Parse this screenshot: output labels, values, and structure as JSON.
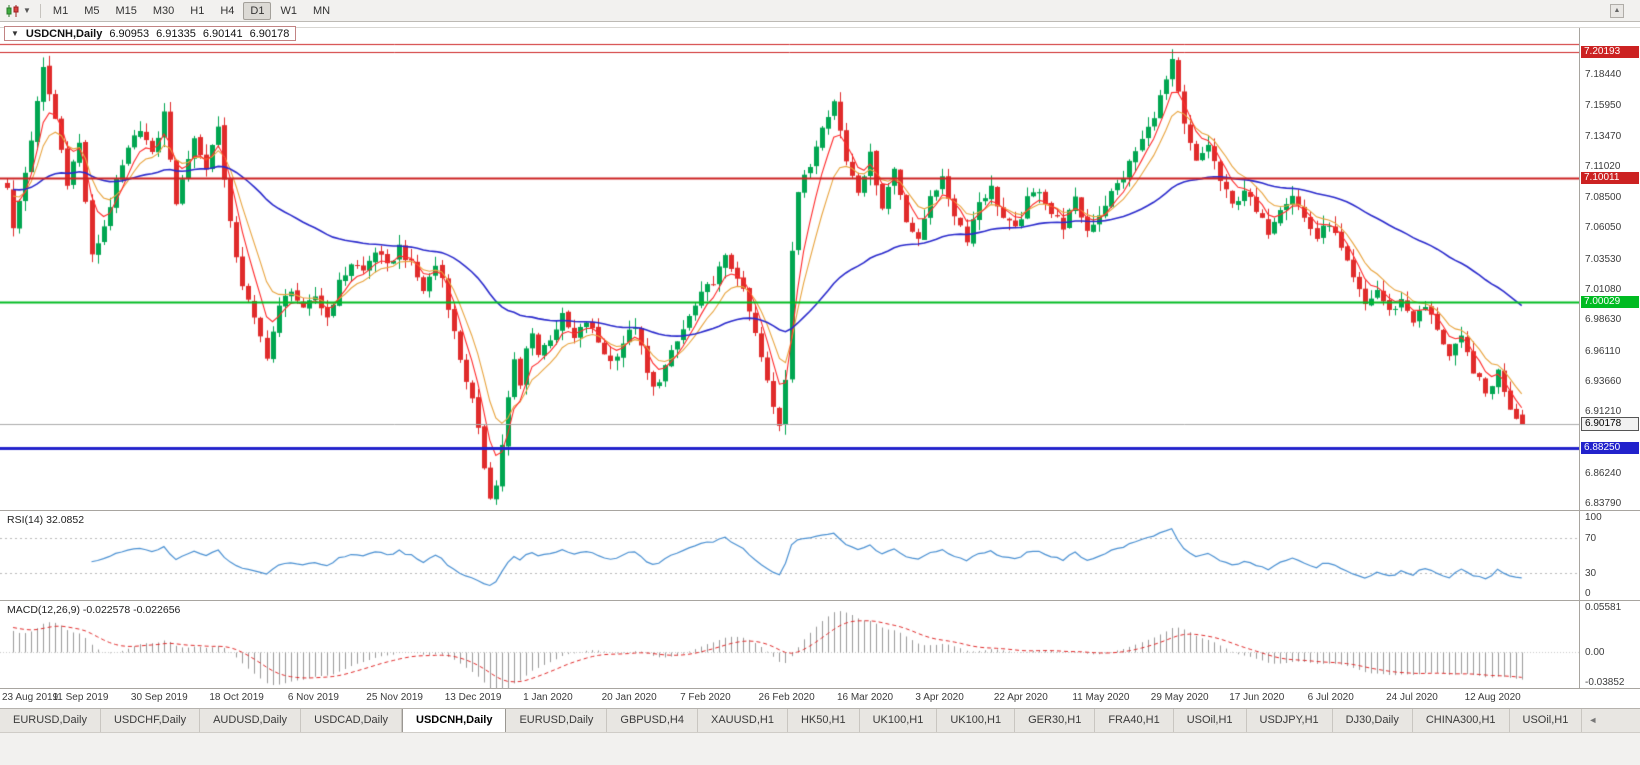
{
  "toolbar": {
    "timeframes": [
      "M1",
      "M5",
      "M15",
      "M30",
      "H1",
      "H4",
      "D1",
      "W1",
      "MN"
    ],
    "active_timeframe": "D1"
  },
  "title_overlay": {
    "collapse_icon": "▼",
    "symbol_period": "USDCNH,Daily",
    "open": "6.90953",
    "high": "6.91335",
    "low": "6.90141",
    "close": "6.90178"
  },
  "chart_data": {
    "type": "candlestick",
    "title": "USDCNH,Daily",
    "symbol": "USDCNH",
    "period": "Daily",
    "ohlc_display": {
      "open": 6.90953,
      "high": 6.91335,
      "low": 6.90141,
      "close": 6.90178
    },
    "price_axis": {
      "min": 6.8325,
      "max": 7.2215,
      "ticks": [
        "7.18440",
        "7.15950",
        "7.13470",
        "7.11020",
        "7.08500",
        "7.06050",
        "7.03530",
        "7.01080",
        "6.98630",
        "6.96110",
        "6.93660",
        "6.91210",
        "6.86240",
        "6.83790"
      ]
    },
    "time_axis": {
      "labels": [
        "23 Aug 2019",
        "11 Sep 2019",
        "30 Sep 2019",
        "18 Oct 2019",
        "6 Nov 2019",
        "25 Nov 2019",
        "13 Dec 2019",
        "1 Jan 2020",
        "20 Jan 2020",
        "7 Feb 2020",
        "26 Feb 2020",
        "16 Mar 2020",
        "3 Apr 2020",
        "22 Apr 2020",
        "11 May 2020",
        "29 May 2020",
        "17 Jun 2020",
        "6 Jul 2020",
        "24 Jul 2020",
        "12 Aug 2020"
      ],
      "bars_per_label": 13
    },
    "horizontal_lines": [
      {
        "value": 7.2089,
        "label": "",
        "color": "#cc2222",
        "width": 1,
        "show_label": false
      },
      {
        "value": 7.20193,
        "label": "7.20193",
        "color": "#cc2222",
        "width": 1,
        "show_label": true
      },
      {
        "value": 7.10011,
        "label": "7.10011",
        "color": "#cc2222",
        "width": 2,
        "show_label": true
      },
      {
        "value": 7.00029,
        "label": "7.00029",
        "color": "#00bb22",
        "width": 2,
        "show_label": true
      },
      {
        "value": 6.8825,
        "label": "6.88250",
        "color": "#2222cc",
        "width": 3,
        "show_label": true
      }
    ],
    "current_price": {
      "value": 6.90178,
      "label": "6.90178",
      "line_color": "#aaaaaa"
    },
    "candles": {
      "count": 252,
      "slots": 260,
      "up_color": "#00a651",
      "down_color": "#e02b2b",
      "close_anchors": [
        [
          0,
          7.095
        ],
        [
          1,
          7.058
        ],
        [
          3,
          7.105
        ],
        [
          5,
          7.16
        ],
        [
          6,
          7.188
        ],
        [
          8,
          7.148
        ],
        [
          10,
          7.098
        ],
        [
          12,
          7.128
        ],
        [
          14,
          7.036
        ],
        [
          16,
          7.062
        ],
        [
          18,
          7.096
        ],
        [
          20,
          7.122
        ],
        [
          22,
          7.142
        ],
        [
          24,
          7.118
        ],
        [
          26,
          7.152
        ],
        [
          27,
          7.118
        ],
        [
          28,
          7.076
        ],
        [
          29,
          7.102
        ],
        [
          31,
          7.132
        ],
        [
          33,
          7.108
        ],
        [
          35,
          7.145
        ],
        [
          36,
          7.098
        ],
        [
          37,
          7.062
        ],
        [
          39,
          7.015
        ],
        [
          41,
          6.985
        ],
        [
          43,
          6.958
        ],
        [
          45,
          6.995
        ],
        [
          47,
          7.012
        ],
        [
          49,
          6.992
        ],
        [
          51,
          7.005
        ],
        [
          53,
          6.988
        ],
        [
          55,
          7.015
        ],
        [
          57,
          7.032
        ],
        [
          59,
          7.025
        ],
        [
          61,
          7.042
        ],
        [
          63,
          7.028
        ],
        [
          65,
          7.045
        ],
        [
          67,
          7.03
        ],
        [
          69,
          7.01
        ],
        [
          71,
          7.03
        ],
        [
          72,
          7.02
        ],
        [
          73,
          6.998
        ],
        [
          74,
          6.975
        ],
        [
          75,
          6.955
        ],
        [
          76,
          6.938
        ],
        [
          77,
          6.92
        ],
        [
          78,
          6.895
        ],
        [
          79,
          6.868
        ],
        [
          80,
          6.845
        ],
        [
          81,
          6.852
        ],
        [
          82,
          6.886
        ],
        [
          83,
          6.922
        ],
        [
          84,
          6.952
        ],
        [
          85,
          6.932
        ],
        [
          86,
          6.962
        ],
        [
          87,
          6.978
        ],
        [
          88,
          6.958
        ],
        [
          90,
          6.972
        ],
        [
          92,
          6.988
        ],
        [
          94,
          6.97
        ],
        [
          96,
          6.985
        ],
        [
          98,
          6.968
        ],
        [
          100,
          6.952
        ],
        [
          102,
          6.968
        ],
        [
          104,
          6.982
        ],
        [
          105,
          6.962
        ],
        [
          106,
          6.942
        ],
        [
          107,
          6.93
        ],
        [
          109,
          6.948
        ],
        [
          111,
          6.968
        ],
        [
          113,
          6.988
        ],
        [
          115,
          7.005
        ],
        [
          117,
          7.018
        ],
        [
          119,
          7.035
        ],
        [
          121,
          7.022
        ],
        [
          123,
          6.992
        ],
        [
          125,
          6.955
        ],
        [
          127,
          6.915
        ],
        [
          128,
          6.902
        ],
        [
          129,
          6.94
        ],
        [
          130,
          7.045
        ],
        [
          131,
          7.09
        ],
        [
          133,
          7.11
        ],
        [
          135,
          7.145
        ],
        [
          137,
          7.162
        ],
        [
          139,
          7.115
        ],
        [
          141,
          7.092
        ],
        [
          143,
          7.118
        ],
        [
          145,
          7.078
        ],
        [
          147,
          7.108
        ],
        [
          149,
          7.068
        ],
        [
          151,
          7.048
        ],
        [
          153,
          7.088
        ],
        [
          155,
          7.098
        ],
        [
          157,
          7.072
        ],
        [
          159,
          7.052
        ],
        [
          161,
          7.082
        ],
        [
          163,
          7.092
        ],
        [
          165,
          7.068
        ],
        [
          167,
          7.058
        ],
        [
          169,
          7.082
        ],
        [
          171,
          7.092
        ],
        [
          173,
          7.072
        ],
        [
          175,
          7.062
        ],
        [
          177,
          7.082
        ],
        [
          179,
          7.058
        ],
        [
          181,
          7.072
        ],
        [
          183,
          7.088
        ],
        [
          185,
          7.102
        ],
        [
          187,
          7.122
        ],
        [
          189,
          7.14
        ],
        [
          191,
          7.165
        ],
        [
          193,
          7.193
        ],
        [
          195,
          7.142
        ],
        [
          197,
          7.112
        ],
        [
          199,
          7.128
        ],
        [
          201,
          7.098
        ],
        [
          203,
          7.078
        ],
        [
          205,
          7.092
        ],
        [
          207,
          7.072
        ],
        [
          209,
          7.058
        ],
        [
          211,
          7.078
        ],
        [
          213,
          7.088
        ],
        [
          215,
          7.068
        ],
        [
          217,
          7.052
        ],
        [
          219,
          7.065
        ],
        [
          221,
          7.042
        ],
        [
          223,
          7.018
        ],
        [
          225,
          6.998
        ],
        [
          227,
          7.01
        ],
        [
          229,
          6.992
        ],
        [
          231,
          7.002
        ],
        [
          233,
          6.986
        ],
        [
          235,
          6.996
        ],
        [
          237,
          6.98
        ],
        [
          239,
          6.956
        ],
        [
          241,
          6.97
        ],
        [
          243,
          6.946
        ],
        [
          245,
          6.926
        ],
        [
          247,
          6.944
        ],
        [
          249,
          6.916
        ],
        [
          250,
          6.908
        ],
        [
          251,
          6.9018
        ]
      ]
    },
    "moving_averages": [
      {
        "period": 9,
        "color": "#e8a33d"
      },
      {
        "period": 5,
        "color": "#ff2a2a"
      },
      {
        "period": 50,
        "color": "#2a2acc"
      }
    ],
    "rsi": {
      "label": "RSI(14)",
      "current_display": "32.0852",
      "period": 14,
      "levels": [
        "100",
        "70",
        "30",
        "0"
      ],
      "level_lines": [
        70,
        30
      ],
      "line_color": "#4a90d2"
    },
    "macd": {
      "label": "MACD(12,26,9)",
      "current_display": "-0.022578 -0.022656",
      "fast": 12,
      "slow": 26,
      "signal": 9,
      "axis_labels": [
        "0.05581",
        "0.00",
        "-0.03852"
      ],
      "scale_max": 0.05581,
      "scale_min": -0.03852,
      "histogram_color": "#9a9a9a",
      "signal_color": "#e02b2b"
    }
  },
  "tabs": {
    "items": [
      "EURUSD,Daily",
      "USDCHF,Daily",
      "AUDUSD,Daily",
      "USDCAD,Daily",
      "USDCNH,Daily",
      "EURUSD,Daily",
      "GBPUSD,H4",
      "XAUUSD,H1",
      "HK50,H1",
      "UK100,H1",
      "UK100,H1",
      "GER30,H1",
      "FRA40,H1",
      "USOil,H1",
      "USDJPY,H1",
      "DJ30,Daily",
      "CHINA300,H1",
      "USOil,H1"
    ],
    "active_index": 4,
    "scroll_icon": "◄"
  }
}
